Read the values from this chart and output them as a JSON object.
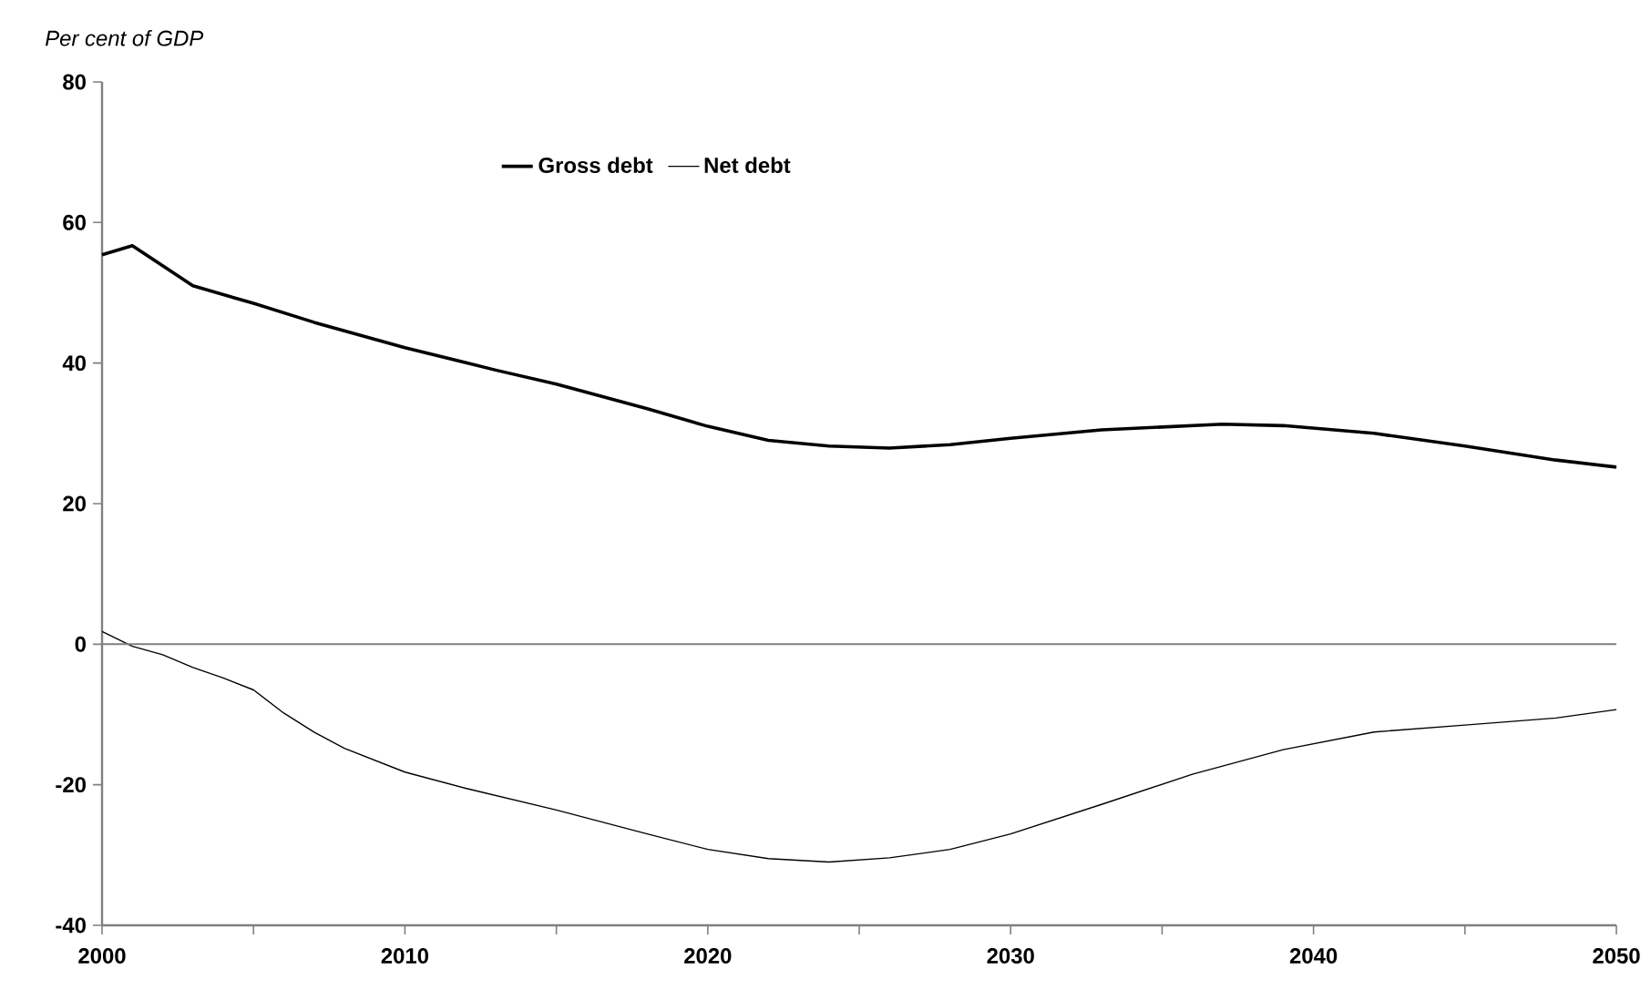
{
  "chart_data": {
    "type": "line",
    "ylabel": "Per cent of GDP",
    "x": [
      2000,
      2001,
      2002,
      2003,
      2004,
      2005,
      2006,
      2007,
      2008,
      2010,
      2012,
      2015,
      2018,
      2020,
      2022,
      2024,
      2026,
      2028,
      2030,
      2033,
      2036,
      2039,
      2042,
      2045,
      2048,
      2050
    ],
    "series": [
      {
        "name": "Gross debt",
        "color": "#000000",
        "x": [
          2000,
          2001,
          2003,
          2005,
          2007,
          2010,
          2013,
          2015,
          2018,
          2020,
          2022,
          2024,
          2026,
          2028,
          2030,
          2033,
          2037,
          2039,
          2042,
          2045,
          2048,
          2050
        ],
        "values": [
          55.4,
          56.7,
          51.0,
          48.5,
          45.8,
          42.2,
          39.0,
          37.0,
          33.5,
          31.0,
          29.0,
          28.2,
          27.9,
          28.4,
          29.3,
          30.5,
          31.3,
          31.1,
          30.0,
          28.2,
          26.2,
          25.2
        ]
      },
      {
        "name": "Net debt",
        "color": "#000000",
        "values": [
          1.8,
          -0.3,
          -1.5,
          -3.3,
          -4.8,
          -6.5,
          -9.8,
          -12.5,
          -14.8,
          -18.2,
          -20.5,
          -23.6,
          -27.0,
          -29.2,
          -30.5,
          -31.0,
          -30.4,
          -29.2,
          -27.0,
          -22.8,
          -18.5,
          -15.0,
          -12.5,
          -11.5,
          -10.5,
          -9.3
        ]
      }
    ],
    "xlim": [
      2000,
      2050
    ],
    "xticks": [
      2000,
      {
        "value": 2005,
        "label": null
      },
      2010,
      {
        "value": 2015,
        "label": null
      },
      2020,
      {
        "value": 2025,
        "label": null
      },
      2030,
      {
        "value": 2035,
        "label": null
      },
      2040,
      {
        "value": 2045,
        "label": null
      },
      2050
    ],
    "ylim": [
      -40,
      80
    ],
    "yticks": [
      -40,
      -20,
      0,
      20,
      40,
      60,
      80
    ],
    "ref_lines": [
      {
        "axis": "y",
        "value": 0,
        "color": "#7f7f7f"
      }
    ],
    "grid": false,
    "legend": "top",
    "marker": "none",
    "line_style": "solid"
  }
}
